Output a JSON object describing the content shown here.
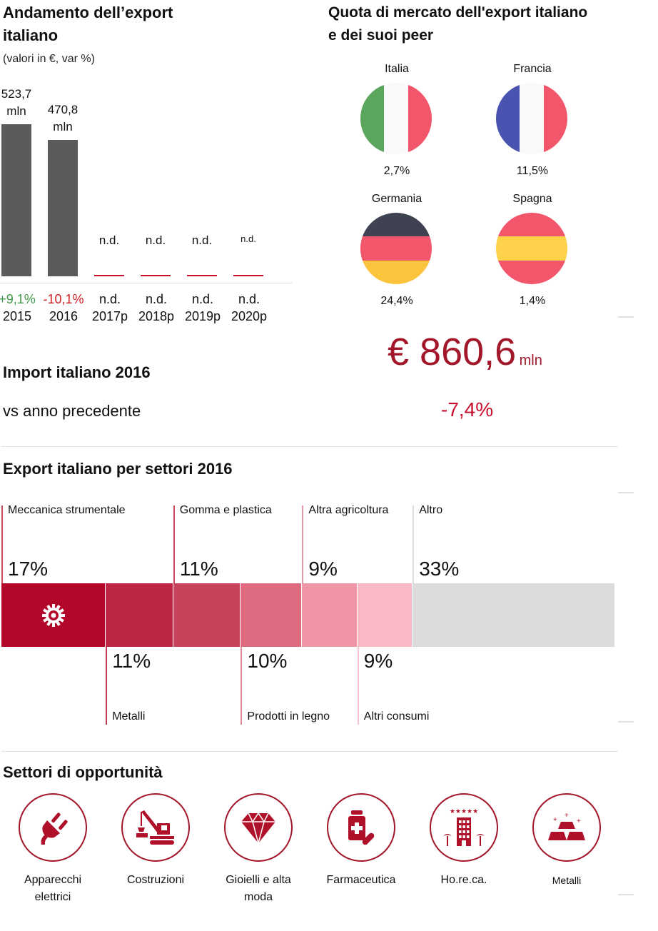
{
  "colors": {
    "accent": "#a3172b",
    "positive": "#3f9a4a",
    "negative": "#d31f26",
    "bar": "#5b5b5b",
    "nd_line": "#c8102e"
  },
  "export_trend": {
    "title_line1": "Andamento dell’export",
    "title_line2": "italiano",
    "subtitle": "(valori in €, var %)"
  },
  "chart_data": {
    "type": "bar",
    "title": "Andamento dell’export italiano",
    "subtitle": "(valori in €, var %)",
    "xlabel": "",
    "ylabel": "",
    "unit": "mln €",
    "categories": [
      "2015",
      "2016",
      "2017p",
      "2018p",
      "2019p",
      "2020p"
    ],
    "values": [
      523.7,
      470.8,
      null,
      null,
      null,
      null
    ],
    "value_labels": [
      {
        "line1": "523,7",
        "line2": "mln"
      },
      {
        "line1": "470,8",
        "line2": "mln"
      },
      {
        "line1": "n.d.",
        "line2": ""
      },
      {
        "line1": "n.d.",
        "line2": ""
      },
      {
        "line1": "n.d.",
        "line2": ""
      },
      {
        "line1": "n.d.",
        "line2": ""
      }
    ],
    "changes": [
      "+9,1%",
      "-10,1%",
      "n.d.",
      "n.d.",
      "n.d.",
      "n.d."
    ],
    "change_status": [
      "positive",
      "negative",
      "neutral",
      "neutral",
      "neutral",
      "neutral"
    ],
    "ylim": [
      0,
      600
    ],
    "grid": false
  },
  "market_share": {
    "title_line1": "Quota di mercato dell'export italiano",
    "title_line2": "e dei suoi peer",
    "countries": [
      {
        "name": "Italia",
        "value": "2,7%",
        "stripes": "vertical",
        "colors": [
          "#59a65c",
          "#f9f9fb",
          "#f2566a"
        ]
      },
      {
        "name": "Francia",
        "value": "11,5%",
        "stripes": "vertical",
        "colors": [
          "#4a54b0",
          "#f9f9fb",
          "#f2566a"
        ]
      },
      {
        "name": "Germania",
        "value": "24,4%",
        "stripes": "horizontal",
        "colors": [
          "#3f4250",
          "#f2566a",
          "#fcc33d"
        ]
      },
      {
        "name": "Spagna",
        "value": "1,4%",
        "stripes": "horizontal",
        "colors": [
          "#f2566a",
          "#fdd24a",
          "#f2566a"
        ]
      }
    ]
  },
  "import": {
    "title": "Import italiano 2016",
    "value": "€ 860,6",
    "unit": "mln",
    "compare_label": "vs anno precedente",
    "change": "-7,4%"
  },
  "sectors": {
    "title": "Export italiano per settori 2016",
    "items": [
      {
        "label": "Meccanica strumentale",
        "pct": "17%",
        "value": 17,
        "position": "top",
        "color": "#b2062a",
        "line": "#c9485d",
        "icon": "gear-icon"
      },
      {
        "label": "Metalli",
        "pct": "11%",
        "value": 11,
        "position": "bottom",
        "color": "#bd2745",
        "line": "#c33a55"
      },
      {
        "label": "Gomma e plastica",
        "pct": "11%",
        "value": 11,
        "position": "top",
        "color": "#c7435c",
        "line": "#cc4960"
      },
      {
        "label": "Prodotti in legno",
        "pct": "10%",
        "value": 10,
        "position": "bottom",
        "color": "#dd6a7f",
        "line": "#e08a9a"
      },
      {
        "label": "Altra agricoltura",
        "pct": "9%",
        "value": 9,
        "position": "top",
        "color": "#ef95a6",
        "line": "#ec95a5"
      },
      {
        "label": "Altri consumi",
        "pct": "9%",
        "value": 9,
        "position": "bottom",
        "color": "#fbb9c6",
        "line": "#f8c3ce"
      },
      {
        "label": "Altro",
        "pct": "33%",
        "value": 33,
        "position": "top",
        "color": "#dcdcdc",
        "line": "#dddddd"
      }
    ]
  },
  "opportunities": {
    "title": "Settori di opportunità",
    "items": [
      {
        "label": "Apparecchi elettrici",
        "icon": "plug-icon"
      },
      {
        "label": "Costruzioni",
        "icon": "crane-icon"
      },
      {
        "label": "Gioielli e alta moda",
        "icon": "diamond-icon"
      },
      {
        "label": "Farmaceutica",
        "icon": "medicine-icon"
      },
      {
        "label": "Ho.re.ca.",
        "icon": "hotel-icon"
      },
      {
        "label": "Metalli",
        "icon": "gold-bars-icon"
      }
    ]
  }
}
